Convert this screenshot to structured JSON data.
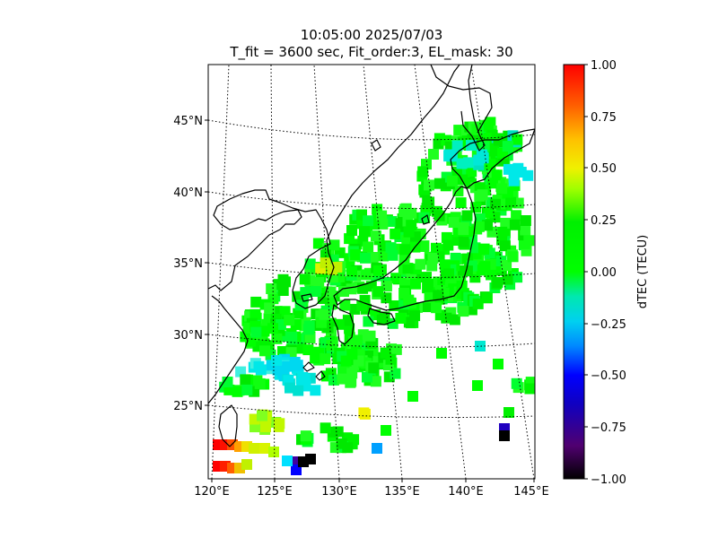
{
  "title": {
    "line1": "10:05:00 2025/07/03",
    "line2": "T_fit = 3600 sec, Fit_order:3, EL_mask: 30"
  },
  "map": {
    "lon_labels": [
      "120°E",
      "125°E",
      "130°E",
      "135°E",
      "140°E",
      "145°E"
    ],
    "lat_labels": [
      "25°N",
      "30°N",
      "35°N",
      "40°N",
      "45°N"
    ],
    "lon_range": [
      120,
      145
    ],
    "lat_range": [
      20,
      49
    ]
  },
  "colorbar": {
    "label": "dTEC (TECU)",
    "ticks": [
      "1.00",
      "0.75",
      "0.50",
      "0.25",
      "0.00",
      "−0.25",
      "−0.50",
      "−0.75",
      "−1.00"
    ],
    "range": [
      -1,
      1
    ],
    "colormap": "nipy_spectral-like"
  },
  "colors": {
    "red": "#ff0000",
    "orange": "#ff8000",
    "yellow": "#e0f000",
    "green": "#00ff00",
    "cyan": "#00e8e8",
    "blue": "#0000ff",
    "black": "#000000"
  }
}
